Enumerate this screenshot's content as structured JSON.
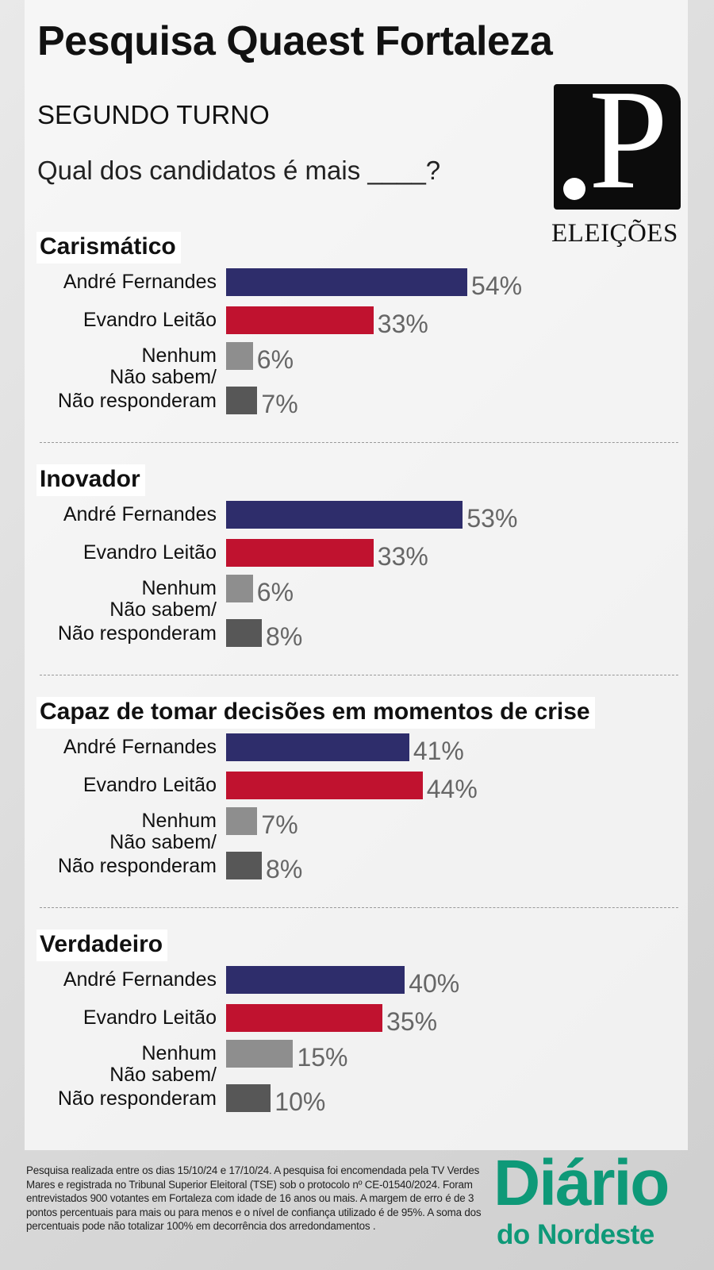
{
  "header": {
    "title": "Pesquisa Quaest Fortaleza",
    "subtitle": "SEGUNDO TURNO",
    "question": "Qual dos candidatos é mais ____?"
  },
  "logo": {
    "letter": ".P",
    "text": "ELEIÇÕES"
  },
  "colors": {
    "andre": "#2e2d6b",
    "evandro": "#c0122f",
    "nenhum": "#8e8e8e",
    "nsnr": "#575757",
    "brand": "#0e9978"
  },
  "sections": [
    {
      "title": "Carismático",
      "rows": [
        {
          "label": "André Fernandes",
          "value": 54,
          "text": "54%"
        },
        {
          "label": "Evandro Leitão",
          "value": 33,
          "text": "33%"
        },
        {
          "label": "Nenhum",
          "value": 6,
          "text": "6%"
        },
        {
          "label": "Não sabem/\nNão responderam",
          "value": 7,
          "text": "7%"
        }
      ]
    },
    {
      "title": "Inovador",
      "rows": [
        {
          "label": "André Fernandes",
          "value": 53,
          "text": "53%"
        },
        {
          "label": "Evandro Leitão",
          "value": 33,
          "text": "33%"
        },
        {
          "label": "Nenhum",
          "value": 6,
          "text": "6%"
        },
        {
          "label": "Não sabem/\nNão responderam",
          "value": 8,
          "text": "8%"
        }
      ]
    },
    {
      "title": "Capaz de tomar decisões em momentos de crise",
      "rows": [
        {
          "label": "André Fernandes",
          "value": 41,
          "text": "41%"
        },
        {
          "label": "Evandro Leitão",
          "value": 44,
          "text": "44%"
        },
        {
          "label": "Nenhum",
          "value": 7,
          "text": "7%"
        },
        {
          "label": "Não sabem/\nNão responderam",
          "value": 8,
          "text": "8%"
        }
      ]
    },
    {
      "title": "Verdadeiro",
      "rows": [
        {
          "label": "André Fernandes",
          "value": 40,
          "text": "40%"
        },
        {
          "label": "Evandro Leitão",
          "value": 35,
          "text": "35%"
        },
        {
          "label": "Nenhum",
          "value": 15,
          "text": "15%"
        },
        {
          "label": "Não sabem/\nNão responderam",
          "value": 10,
          "text": "10%"
        }
      ]
    }
  ],
  "footer": {
    "note": "Pesquisa realizada entre os dias 15/10/24 e  17/10/24. A pesquisa foi encomendada pela TV Verdes Mares e registrada no Tribunal Superior Eleitoral (TSE) sob o protocolo nº CE-01540/2024. Foram entrevistados 900 votantes em Fortaleza com idade de 16 anos ou mais. A margem de erro é de 3 pontos percentuais para mais ou para menos e o nível de confiança utilizado é de 95%. A soma dos percentuais pode não totalizar 100% em decorrência dos arredondamentos .",
    "brand_line1": "Diário",
    "brand_line2": "do Nordeste"
  }
}
